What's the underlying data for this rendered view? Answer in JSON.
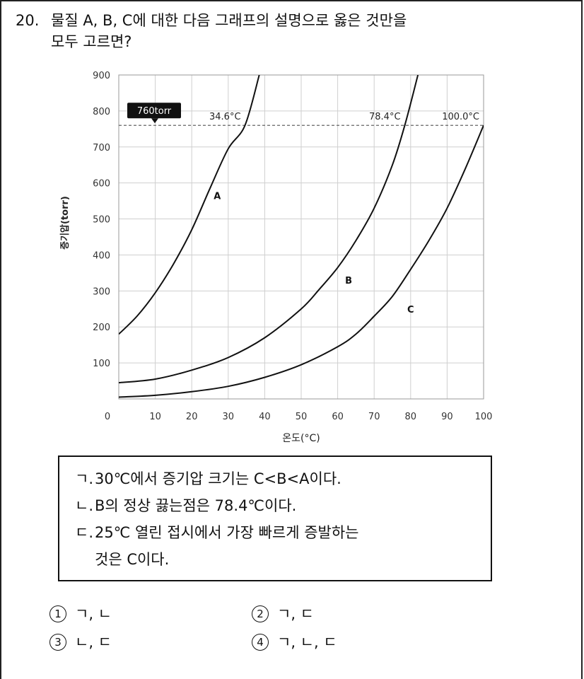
{
  "question": {
    "number": "20.",
    "line1": "물질 A, B, C에 대한 다음 그래프의 설명으로 옳은 것만을",
    "line2": "모두 고르면?"
  },
  "chart_data": {
    "type": "line",
    "xlabel": "온도(°C)",
    "ylabel": "증기압(torr)",
    "xlim": [
      0,
      100
    ],
    "ylim": [
      0,
      900
    ],
    "x_ticks": [
      0,
      10,
      20,
      30,
      40,
      50,
      60,
      70,
      80,
      90,
      100
    ],
    "y_ticks": [
      100,
      200,
      300,
      400,
      500,
      600,
      700,
      800,
      900
    ],
    "grid": true,
    "reference_line": {
      "y": 760,
      "label": "760torr",
      "style": "dashed"
    },
    "series": [
      {
        "name": "A",
        "x": [
          0,
          5,
          10,
          15,
          20,
          25,
          30,
          34.6,
          38.5
        ],
        "y": [
          180,
          230,
          295,
          375,
          470,
          585,
          695,
          760,
          900
        ]
      },
      {
        "name": "B",
        "x": [
          0,
          10,
          20,
          30,
          40,
          50,
          55,
          60,
          65,
          70,
          75,
          78.4,
          82
        ],
        "y": [
          45,
          55,
          80,
          115,
          170,
          250,
          305,
          365,
          440,
          530,
          650,
          760,
          900
        ]
      },
      {
        "name": "C",
        "x": [
          0,
          10,
          20,
          30,
          40,
          50,
          60,
          65,
          70,
          75,
          80,
          85,
          90,
          95,
          100
        ],
        "y": [
          5,
          10,
          20,
          35,
          60,
          95,
          145,
          180,
          230,
          285,
          360,
          440,
          530,
          640,
          760
        ]
      }
    ],
    "annotations": [
      {
        "text": "34.6°C",
        "x": 34.6,
        "y": 760
      },
      {
        "text": "78.4°C",
        "x": 78.4,
        "y": 760
      },
      {
        "text": "100.0°C",
        "x": 100,
        "y": 760
      },
      {
        "text": "A",
        "x": 27,
        "y": 555
      },
      {
        "text": "B",
        "x": 63,
        "y": 320
      },
      {
        "text": "C",
        "x": 80,
        "y": 240
      }
    ]
  },
  "statements": [
    {
      "mark": "ㄱ.",
      "text": "30℃에서 증기압 크기는 C<B<A이다."
    },
    {
      "mark": "ㄴ.",
      "text": "B의 정상 끓는점은 78.4℃이다."
    },
    {
      "mark": "ㄷ.",
      "text": "25℃ 열린 접시에서 가장 빠르게 증발하는",
      "text2": "것은 C이다."
    }
  ],
  "choices": [
    {
      "num": "1",
      "text": "ㄱ, ㄴ"
    },
    {
      "num": "2",
      "text": "ㄱ, ㄷ"
    },
    {
      "num": "3",
      "text": "ㄴ, ㄷ"
    },
    {
      "num": "4",
      "text": "ㄱ, ㄴ, ㄷ"
    }
  ]
}
